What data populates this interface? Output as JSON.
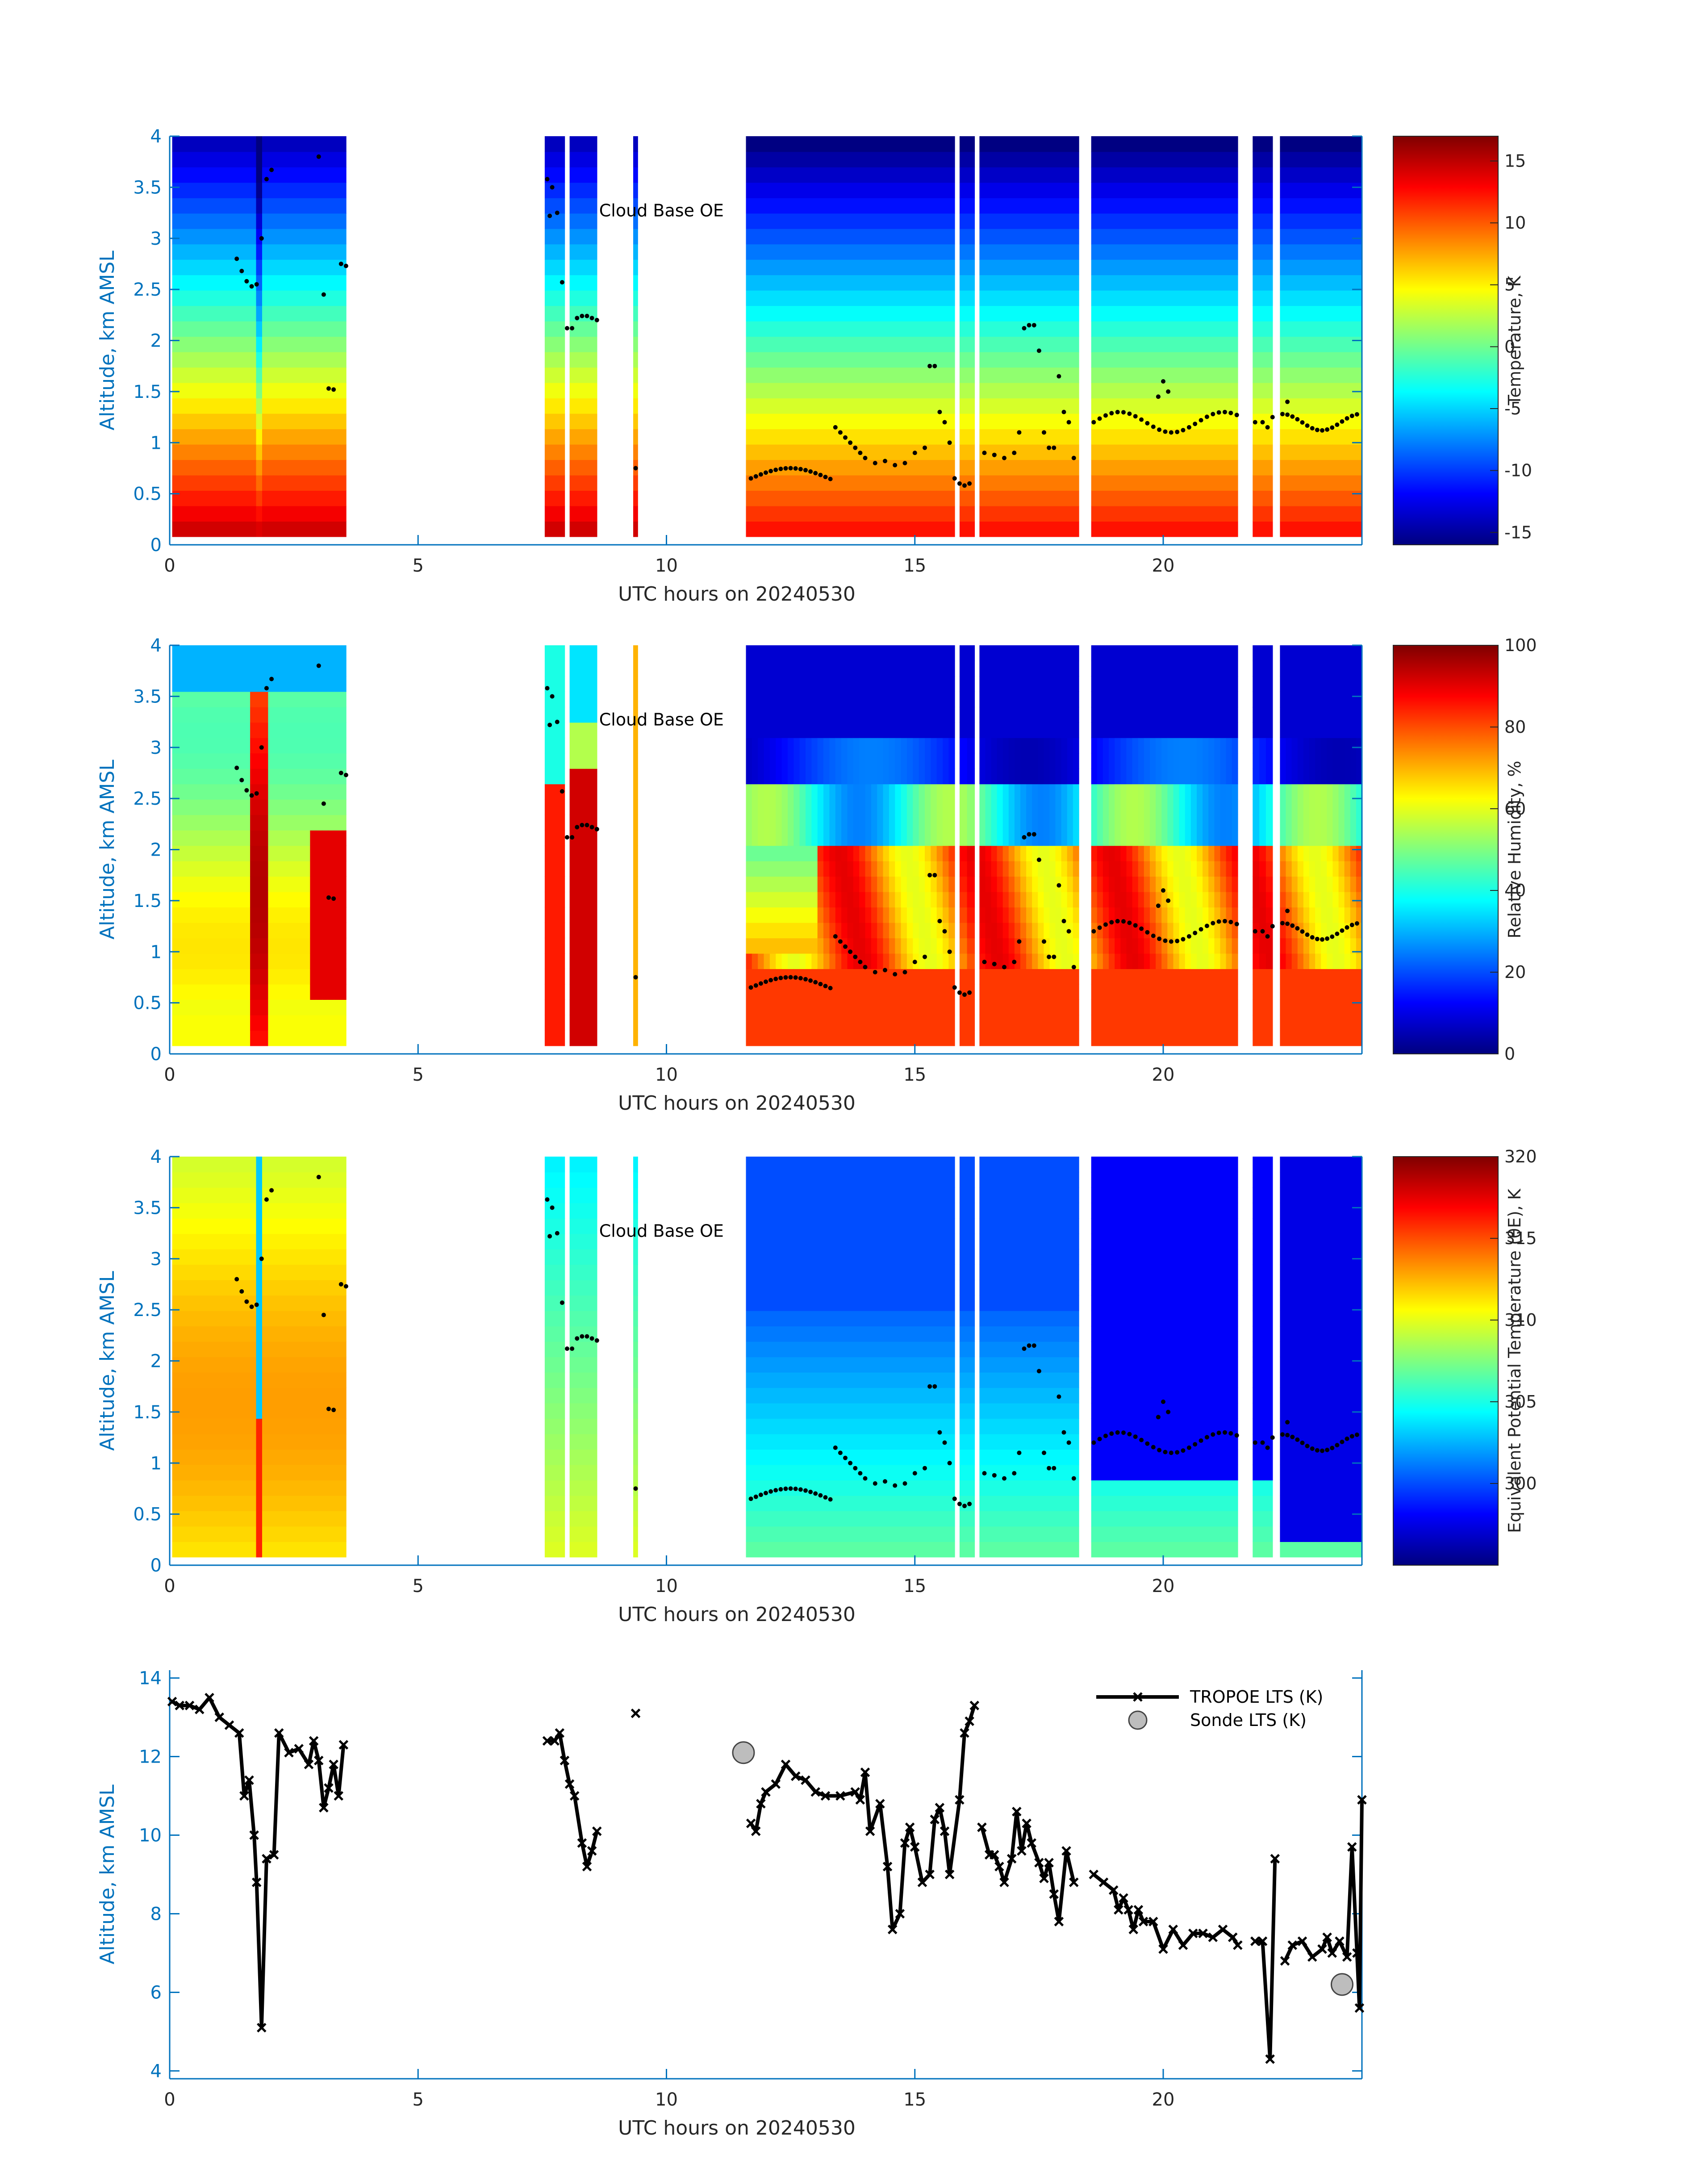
{
  "chart_data": [
    {
      "type": "heatmap",
      "panel": "temperature",
      "xlabel": "UTC hours on 20240530",
      "ylabel": "Altitude, km AMSL",
      "xlim": [
        0,
        24
      ],
      "ylim": [
        0,
        4
      ],
      "xticks": [
        0,
        5,
        10,
        15,
        20
      ],
      "yticks": [
        0,
        0.5,
        1,
        1.5,
        2,
        2.5,
        3,
        3.5,
        4
      ],
      "colorbar": {
        "label": "Temperature, K",
        "range": [
          -16,
          17
        ],
        "ticks": [
          -15,
          -10,
          -5,
          0,
          5,
          10,
          15
        ]
      },
      "annotation": {
        "text": "Cloud Base OE",
        "x": 8.6,
        "y": 3.25
      },
      "data_segments": [
        [
          0.05,
          3.55
        ],
        [
          7.55,
          7.95
        ],
        [
          8.05,
          8.6
        ],
        [
          9.33,
          9.42
        ],
        [
          11.6,
          15.8
        ],
        [
          15.9,
          16.2
        ],
        [
          16.3,
          18.3
        ],
        [
          18.55,
          21.5
        ],
        [
          21.8,
          22.2
        ],
        [
          22.35,
          24
        ]
      ]
    },
    {
      "type": "heatmap",
      "panel": "relative_humidity",
      "xlabel": "UTC hours on 20240530",
      "ylabel": "Altitude, km AMSL",
      "xlim": [
        0,
        24
      ],
      "ylim": [
        0,
        4
      ],
      "xticks": [
        0,
        5,
        10,
        15,
        20
      ],
      "yticks": [
        0,
        0.5,
        1,
        1.5,
        2,
        2.5,
        3,
        3.5,
        4
      ],
      "colorbar": {
        "label": "Relative Humidity, %",
        "range": [
          0,
          100
        ],
        "ticks": [
          0,
          20,
          40,
          60,
          80,
          100
        ]
      },
      "annotation": {
        "text": "Cloud Base OE",
        "x": 8.6,
        "y": 3.25
      }
    },
    {
      "type": "heatmap",
      "panel": "equivalent_potential_temperature",
      "xlabel": "UTC hours on 20240530",
      "ylabel": "Altitude, km AMSL",
      "xlim": [
        0,
        24
      ],
      "ylim": [
        0,
        4
      ],
      "xticks": [
        0,
        5,
        10,
        15,
        20
      ],
      "yticks": [
        0,
        0.5,
        1,
        1.5,
        2,
        2.5,
        3,
        3.5,
        4
      ],
      "colorbar": {
        "label": "Equivalent Potential Temperature (θE), K",
        "range": [
          295,
          320
        ],
        "ticks": [
          300,
          305,
          310,
          315,
          320
        ]
      },
      "annotation": {
        "text": "Cloud Base OE",
        "x": 8.6,
        "y": 3.25
      }
    },
    {
      "type": "line",
      "panel": "lts",
      "xlabel": "UTC hours on 20240530",
      "ylabel": "Altitude, km AMSL",
      "xlim": [
        0,
        24
      ],
      "ylim": [
        3.8,
        14.2
      ],
      "xticks": [
        0,
        5,
        10,
        15,
        20
      ],
      "yticks": [
        4,
        6,
        8,
        10,
        12,
        14
      ],
      "legend": {
        "placement": "top-right",
        "entries": [
          "TROPOE LTS (K)",
          "Sonde LTS (K)"
        ]
      },
      "series": [
        {
          "name": "TROPOE LTS (K)",
          "segments": [
            [
              [
                0.05,
                13.4
              ],
              [
                0.2,
                13.3
              ],
              [
                0.4,
                13.3
              ],
              [
                0.6,
                13.2
              ],
              [
                0.8,
                13.5
              ],
              [
                1.0,
                13.0
              ],
              [
                1.2,
                12.8
              ],
              [
                1.4,
                12.6
              ],
              [
                1.5,
                11.0
              ],
              [
                1.6,
                11.4
              ],
              [
                1.7,
                10.0
              ],
              [
                1.75,
                8.8
              ],
              [
                1.85,
                5.1
              ],
              [
                1.95,
                9.4
              ],
              [
                2.1,
                9.5
              ],
              [
                2.2,
                12.6
              ],
              [
                2.4,
                12.1
              ],
              [
                2.6,
                12.2
              ],
              [
                2.8,
                11.8
              ],
              [
                2.9,
                12.4
              ],
              [
                3.0,
                11.9
              ],
              [
                3.1,
                10.7
              ],
              [
                3.2,
                11.2
              ],
              [
                3.3,
                11.8
              ],
              [
                3.4,
                11.0
              ],
              [
                3.5,
                12.3
              ]
            ],
            [
              [
                7.6,
                12.4
              ],
              [
                7.75,
                12.4
              ],
              [
                7.85,
                12.6
              ],
              [
                7.95,
                11.9
              ],
              [
                8.05,
                11.3
              ],
              [
                8.15,
                11.0
              ],
              [
                8.3,
                9.8
              ],
              [
                8.4,
                9.2
              ],
              [
                8.5,
                9.6
              ],
              [
                8.6,
                10.1
              ]
            ],
            [
              [
                9.38,
                13.1
              ]
            ],
            [
              [
                11.7,
                10.3
              ],
              [
                11.8,
                10.1
              ],
              [
                11.9,
                10.8
              ],
              [
                12.0,
                11.1
              ],
              [
                12.2,
                11.3
              ],
              [
                12.4,
                11.8
              ],
              [
                12.6,
                11.5
              ],
              [
                12.8,
                11.4
              ],
              [
                13.0,
                11.1
              ],
              [
                13.2,
                11.0
              ],
              [
                13.5,
                11.0
              ],
              [
                13.8,
                11.1
              ],
              [
                13.9,
                10.9
              ],
              [
                14.0,
                11.6
              ],
              [
                14.1,
                10.1
              ],
              [
                14.3,
                10.8
              ],
              [
                14.45,
                9.2
              ],
              [
                14.55,
                7.6
              ],
              [
                14.7,
                8.0
              ],
              [
                14.8,
                9.8
              ],
              [
                14.9,
                10.2
              ],
              [
                15.0,
                9.7
              ],
              [
                15.15,
                8.8
              ],
              [
                15.3,
                9.0
              ],
              [
                15.4,
                10.4
              ],
              [
                15.5,
                10.7
              ],
              [
                15.6,
                10.1
              ],
              [
                15.7,
                9.0
              ],
              [
                15.9,
                10.9
              ],
              [
                16.0,
                12.6
              ],
              [
                16.1,
                12.9
              ],
              [
                16.2,
                13.3
              ]
            ],
            [
              [
                16.35,
                10.2
              ],
              [
                16.5,
                9.5
              ],
              [
                16.6,
                9.5
              ],
              [
                16.7,
                9.2
              ],
              [
                16.8,
                8.8
              ],
              [
                16.95,
                9.4
              ],
              [
                17.05,
                10.6
              ],
              [
                17.15,
                9.6
              ],
              [
                17.25,
                10.3
              ],
              [
                17.35,
                9.8
              ],
              [
                17.5,
                9.3
              ],
              [
                17.6,
                8.9
              ],
              [
                17.7,
                9.3
              ],
              [
                17.8,
                8.5
              ],
              [
                17.9,
                7.8
              ],
              [
                18.05,
                9.6
              ],
              [
                18.2,
                8.8
              ]
            ],
            [
              [
                18.6,
                9.0
              ],
              [
                18.8,
                8.8
              ],
              [
                19.0,
                8.6
              ],
              [
                19.1,
                8.1
              ],
              [
                19.2,
                8.4
              ],
              [
                19.3,
                8.1
              ],
              [
                19.4,
                7.6
              ],
              [
                19.5,
                8.1
              ],
              [
                19.6,
                7.8
              ],
              [
                19.8,
                7.8
              ],
              [
                20.0,
                7.1
              ],
              [
                20.2,
                7.6
              ],
              [
                20.4,
                7.2
              ],
              [
                20.6,
                7.5
              ],
              [
                20.8,
                7.5
              ],
              [
                21.0,
                7.4
              ],
              [
                21.2,
                7.6
              ],
              [
                21.4,
                7.4
              ],
              [
                21.5,
                7.2
              ]
            ],
            [
              [
                21.85,
                7.3
              ],
              [
                22.0,
                7.3
              ],
              [
                22.15,
                4.3
              ],
              [
                22.25,
                9.4
              ]
            ],
            [
              [
                22.45,
                6.8
              ],
              [
                22.6,
                7.2
              ],
              [
                22.8,
                7.3
              ],
              [
                23.0,
                6.9
              ],
              [
                23.2,
                7.1
              ],
              [
                23.3,
                7.4
              ],
              [
                23.4,
                7.0
              ],
              [
                23.55,
                7.3
              ],
              [
                23.7,
                6.9
              ],
              [
                23.8,
                9.7
              ],
              [
                23.9,
                7.0
              ],
              [
                23.95,
                5.6
              ],
              [
                24.0,
                10.9
              ]
            ]
          ]
        },
        {
          "name": "Sonde LTS (K)",
          "points": [
            [
              11.55,
              12.1
            ],
            [
              23.6,
              6.2
            ]
          ]
        }
      ]
    }
  ]
}
